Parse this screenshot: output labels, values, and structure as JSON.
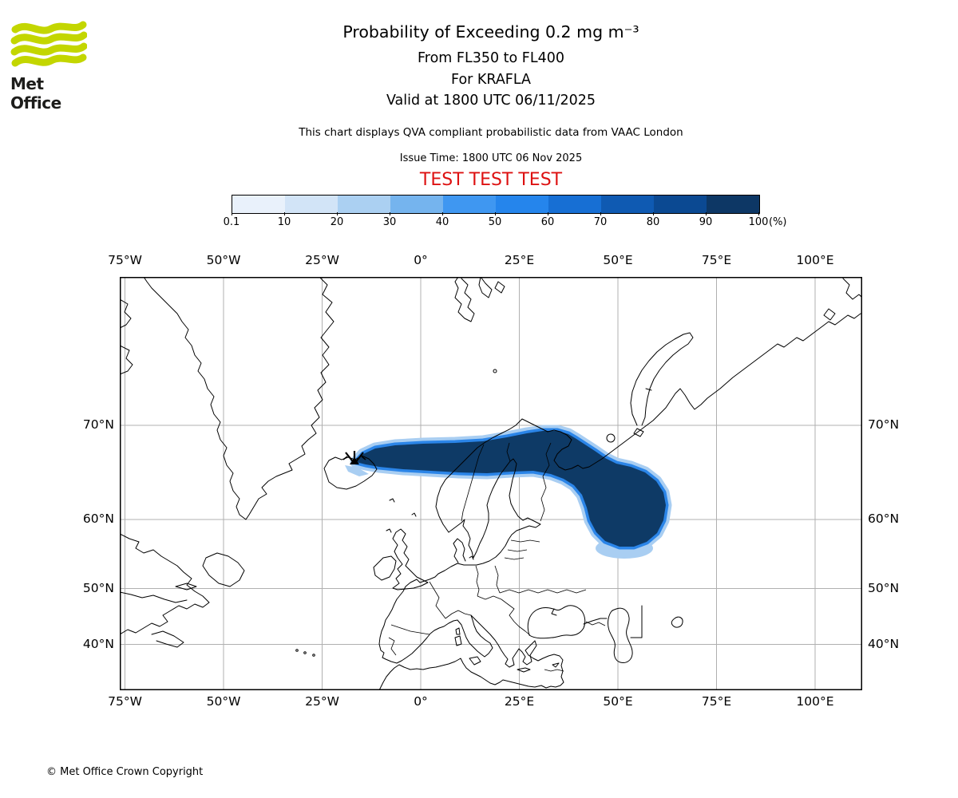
{
  "brand": {
    "name": "Met Office",
    "logo_color": "#c3d600",
    "text_color": "#1d1d1b"
  },
  "header": {
    "title": "Probability of Exceeding 0.2 mg m⁻³",
    "level_line": "From FL350 to FL400",
    "volcano_line": "For KRAFLA",
    "valid_line": "Valid at 1800 UTC 06/11/2025",
    "description": "This chart displays QVA compliant probabilistic data from VAAC London",
    "issue_time": "Issue Time: 1800 UTC 06 Nov 2025",
    "test_banner": "TEST TEST TEST",
    "test_color": "#dd1111"
  },
  "colorbar": {
    "unit_label": "(%)",
    "tick_labels": [
      "0.1",
      "10",
      "20",
      "30",
      "40",
      "50",
      "60",
      "70",
      "80",
      "90",
      "100"
    ],
    "segment_colors": [
      "#e9f1fb",
      "#d2e4f7",
      "#abd0f2",
      "#75b4ee",
      "#3f97f1",
      "#2585ec",
      "#176fd4",
      "#0f5ab2",
      "#0b4992",
      "#0d3765"
    ]
  },
  "map": {
    "lon_labels": [
      "75°W",
      "50°W",
      "25°W",
      "0°",
      "25°E",
      "50°E",
      "75°E",
      "100°E"
    ],
    "lat_labels": [
      "70°N",
      "60°N",
      "50°N",
      "40°N"
    ],
    "grid_color": "#b0b0b0",
    "coast_color": "#000000",
    "plume": {
      "light_color": "#a9cef2",
      "mid_color": "#2b85e8",
      "core_color": "#0e3a66"
    }
  },
  "footer": {
    "copyright": "© Met Office Crown Copyright"
  }
}
